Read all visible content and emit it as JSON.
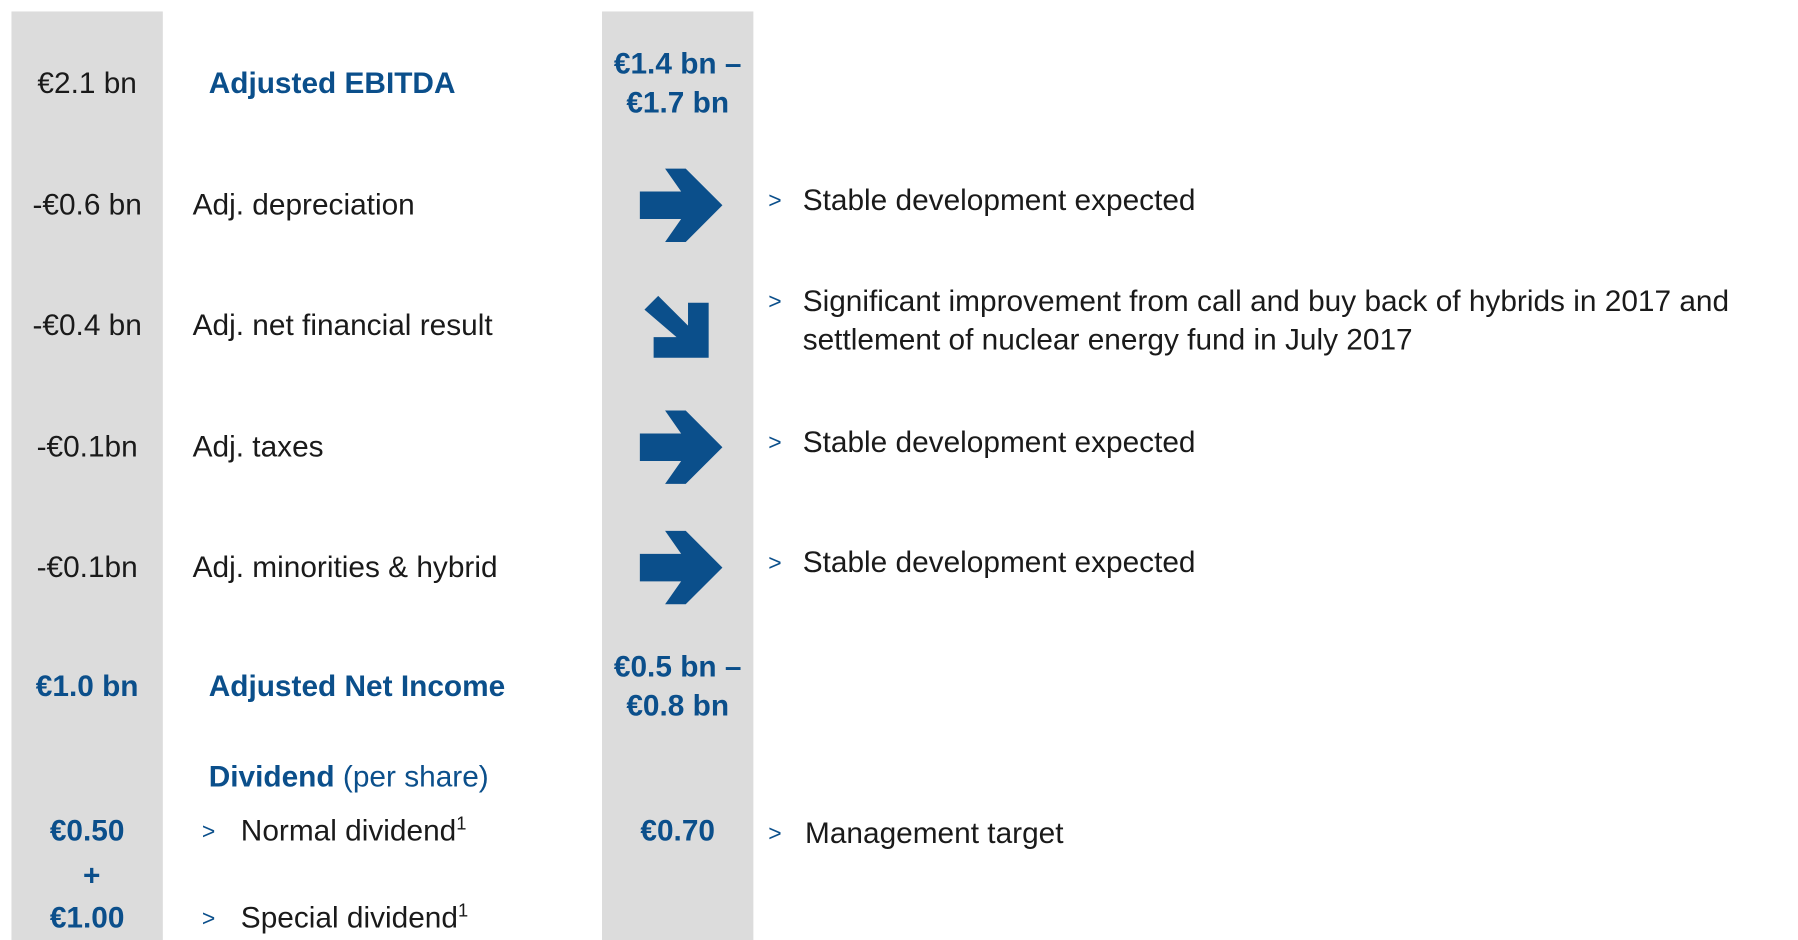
{
  "rows": [
    {
      "left": "€2.1 bn",
      "label": "Adjusted EBITDA",
      "outlook": [
        "€1.4 bn –",
        "€1.7 bn"
      ]
    },
    {
      "left": "-€0.6 bn",
      "label": "Adj. depreciation",
      "comment": [
        "Stable development expected"
      ]
    },
    {
      "left": "-€0.4 bn",
      "label": "Adj. net financial result",
      "comment": [
        "Significant improvement from call and buy back of hybrids in 2017 and",
        "settlement of nuclear energy fund in July 2017"
      ]
    },
    {
      "left": "-€0.1bn",
      "label": "Adj. taxes",
      "comment": [
        "Stable development expected"
      ]
    },
    {
      "left": "-€0.1bn",
      "label": "Adj. minorities & hybrid",
      "comment": [
        "Stable development expected"
      ]
    },
    {
      "left": "€1.0 bn",
      "label": "Adjusted Net Income",
      "outlook": [
        "€0.5 bn –",
        "€0.8 bn"
      ]
    }
  ],
  "dividend": {
    "heading": "Dividend",
    "heading_note": "(per share)",
    "normal": {
      "left": "€0.50",
      "label": "Normal dividend",
      "footnote": "1",
      "outlook": "€0.70",
      "comment": "Management target"
    },
    "plus": "+",
    "special": {
      "left": "€1.00",
      "label": "Special dividend",
      "footnote": "1"
    }
  }
}
